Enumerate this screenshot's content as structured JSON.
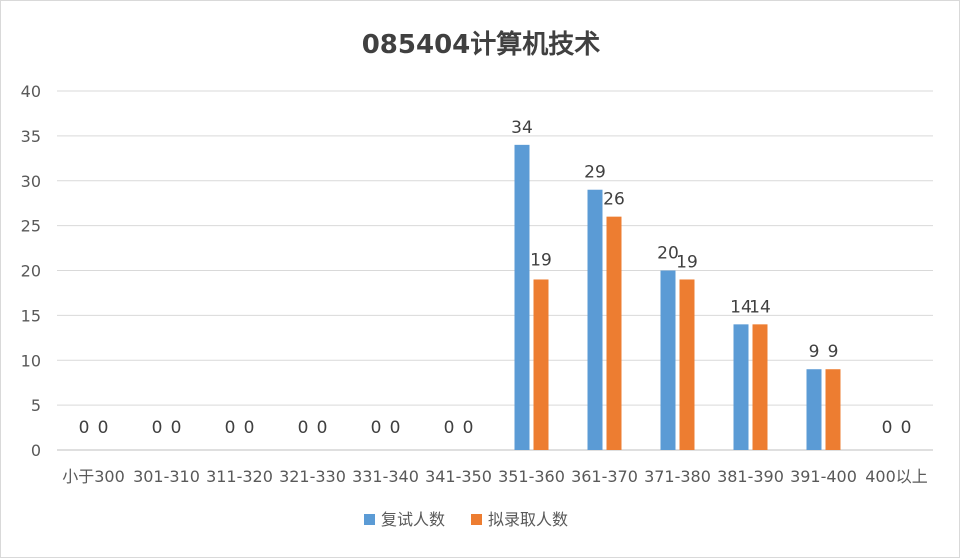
{
  "chart_data": {
    "type": "bar",
    "title": "085404计算机技术",
    "categories": [
      "小于300",
      "301-310",
      "311-320",
      "321-330",
      "331-340",
      "341-350",
      "351-360",
      "361-370",
      "371-380",
      "381-390",
      "391-400",
      "400以上"
    ],
    "series": [
      {
        "name": "复试人数",
        "color": "#5b9bd5",
        "values": [
          0,
          0,
          0,
          0,
          0,
          0,
          34,
          29,
          20,
          14,
          9,
          0
        ]
      },
      {
        "name": "拟录取人数",
        "color": "#ed7d31",
        "values": [
          0,
          0,
          0,
          0,
          0,
          0,
          19,
          26,
          19,
          14,
          9,
          0
        ]
      }
    ],
    "ylim": [
      0,
      40
    ],
    "yticks": [
      0,
      5,
      10,
      15,
      20,
      25,
      30,
      35,
      40
    ],
    "grid": true,
    "legend": "bottom",
    "data_labels": true
  }
}
